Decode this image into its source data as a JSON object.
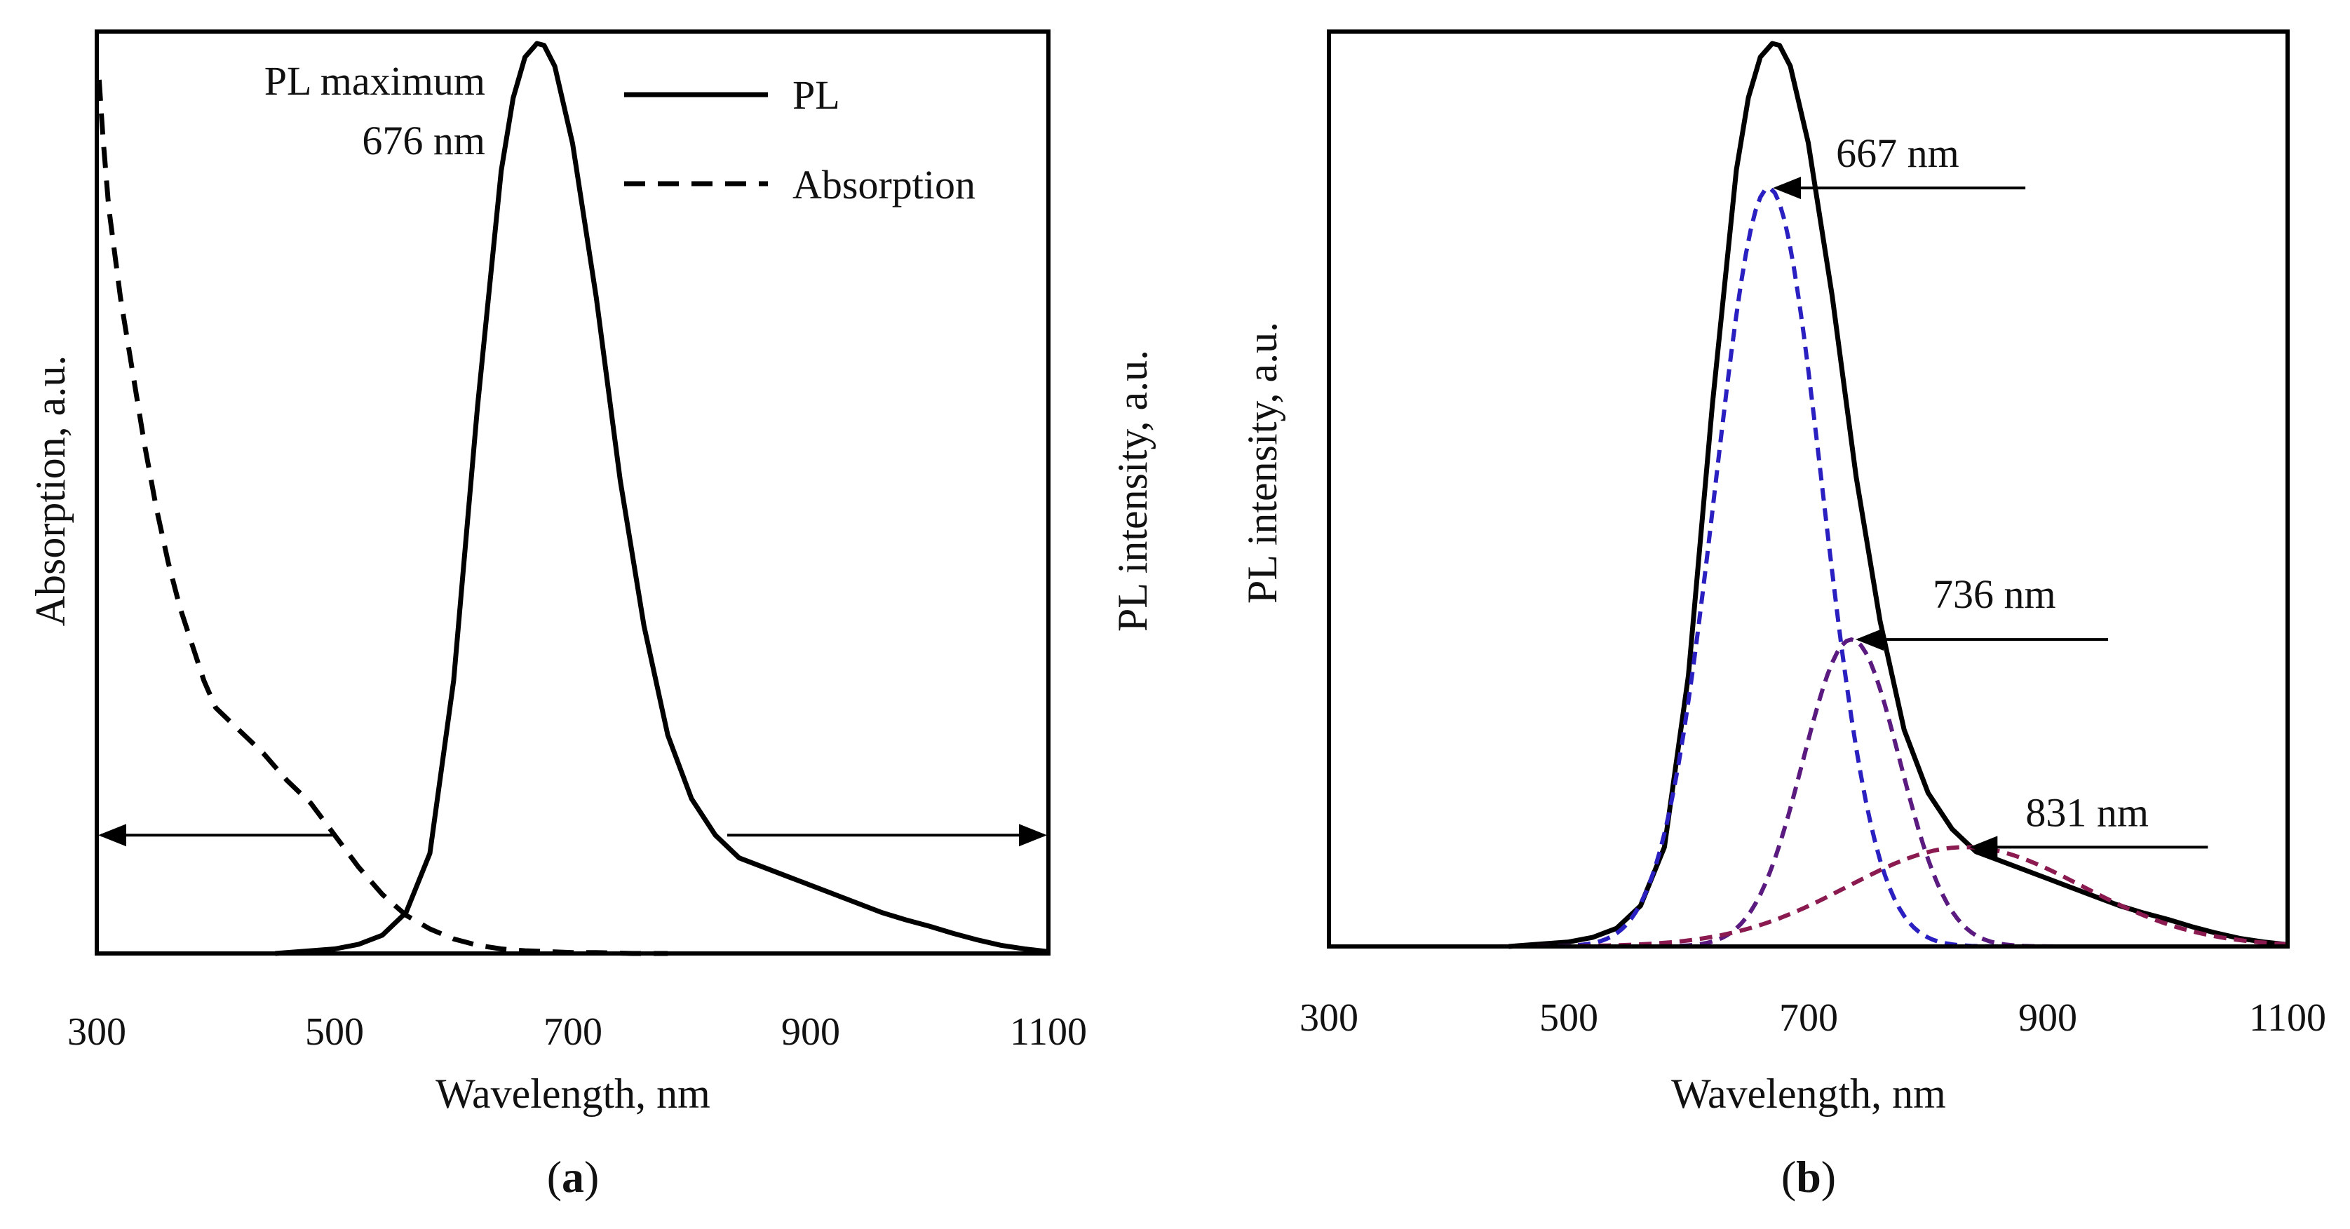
{
  "chart_data": [
    {
      "panel": "a",
      "type": "line",
      "xlabel": "Wavelength, nm",
      "ylabel_left": "Absorption, a.u.",
      "ylabel_right": "PL intensity, a.u.",
      "xlim": [
        300,
        1100
      ],
      "xticks": [
        "300",
        "500",
        "700",
        "900",
        "1100"
      ],
      "ylim": [
        0,
        1
      ],
      "annotation": {
        "line1": "PL maximum",
        "line2": "676 nm"
      },
      "legend": [
        {
          "label": "PL",
          "style": "solid"
        },
        {
          "label": "Absorption",
          "style": "dashed"
        }
      ],
      "series": [
        {
          "name": "PL",
          "style": "solid",
          "color": "#000000",
          "x": [
            450,
            480,
            500,
            520,
            540,
            560,
            580,
            600,
            620,
            640,
            650,
            660,
            670,
            676,
            685,
            700,
            720,
            740,
            760,
            780,
            800,
            820,
            840,
            860,
            880,
            900,
            920,
            940,
            960,
            980,
            1000,
            1020,
            1040,
            1060,
            1080,
            1100
          ],
          "values": [
            0.0,
            0.003,
            0.005,
            0.01,
            0.02,
            0.045,
            0.11,
            0.3,
            0.6,
            0.86,
            0.94,
            0.985,
            1.0,
            0.998,
            0.975,
            0.89,
            0.72,
            0.52,
            0.36,
            0.24,
            0.17,
            0.13,
            0.105,
            0.095,
            0.085,
            0.075,
            0.065,
            0.055,
            0.045,
            0.037,
            0.03,
            0.022,
            0.015,
            0.009,
            0.005,
            0.002
          ]
        },
        {
          "name": "Absorption",
          "style": "dashed",
          "color": "#000000",
          "x": [
            302,
            305,
            310,
            320,
            330,
            340,
            350,
            360,
            370,
            380,
            390,
            400,
            420,
            440,
            460,
            480,
            500,
            520,
            540,
            560,
            580,
            600,
            620,
            640,
            660,
            680,
            700,
            720,
            750,
            780
          ],
          "values": [
            0.96,
            0.9,
            0.82,
            0.72,
            0.64,
            0.56,
            0.49,
            0.43,
            0.38,
            0.34,
            0.3,
            0.27,
            0.245,
            0.22,
            0.19,
            0.165,
            0.13,
            0.095,
            0.065,
            0.042,
            0.027,
            0.016,
            0.009,
            0.005,
            0.003,
            0.002,
            0.001,
            0.001,
            0.0,
            0.0
          ]
        }
      ],
      "arrows": [
        {
          "from_x": 498,
          "to_x": 300,
          "y": 0.13,
          "points_to": "left axis"
        },
        {
          "from_x": 830,
          "to_x": 1100,
          "y": 0.13,
          "points_to": "right axis"
        }
      ]
    },
    {
      "panel": "b",
      "type": "line",
      "xlabel": "Wavelength, nm",
      "ylabel": "PL intensity, a.u.",
      "xlim": [
        300,
        1100
      ],
      "xticks": [
        "300",
        "500",
        "700",
        "900",
        "1100"
      ],
      "ylim": [
        0,
        1
      ],
      "series": [
        {
          "name": "PL",
          "style": "solid",
          "color": "#000000",
          "x": [
            450,
            480,
            500,
            520,
            540,
            560,
            580,
            600,
            620,
            640,
            650,
            660,
            670,
            676,
            685,
            700,
            720,
            740,
            760,
            780,
            800,
            820,
            840,
            860,
            880,
            900,
            920,
            940,
            960,
            980,
            1000,
            1020,
            1040,
            1060,
            1080,
            1100
          ],
          "values": [
            0.0,
            0.003,
            0.005,
            0.01,
            0.02,
            0.045,
            0.11,
            0.3,
            0.6,
            0.86,
            0.94,
            0.985,
            1.0,
            0.998,
            0.975,
            0.89,
            0.72,
            0.52,
            0.36,
            0.24,
            0.17,
            0.13,
            0.105,
            0.095,
            0.085,
            0.075,
            0.065,
            0.055,
            0.045,
            0.037,
            0.03,
            0.022,
            0.015,
            0.009,
            0.005,
            0.002
          ]
        },
        {
          "name": "667 nm",
          "style": "dashed",
          "color": "#2a1fc0",
          "gaussian": {
            "center": 667,
            "amplitude": 0.84,
            "fwhm": 105
          }
        },
        {
          "name": "736 nm",
          "style": "dashed",
          "color": "#5a1a80",
          "gaussian": {
            "center": 736,
            "amplitude": 0.34,
            "fwhm": 95
          }
        },
        {
          "name": "831 nm",
          "style": "dashed",
          "color": "#8a1a50",
          "gaussian": {
            "center": 831,
            "amplitude": 0.11,
            "fwhm": 230
          }
        }
      ],
      "labels": [
        {
          "text": "667 nm",
          "peak_x": 667,
          "peak_y": 0.84
        },
        {
          "text": "736 nm",
          "peak_x": 736,
          "peak_y": 0.34
        },
        {
          "text": "831 nm",
          "peak_x": 831,
          "peak_y": 0.11
        }
      ]
    }
  ],
  "panel_labels": {
    "a": "a",
    "b": "b"
  }
}
